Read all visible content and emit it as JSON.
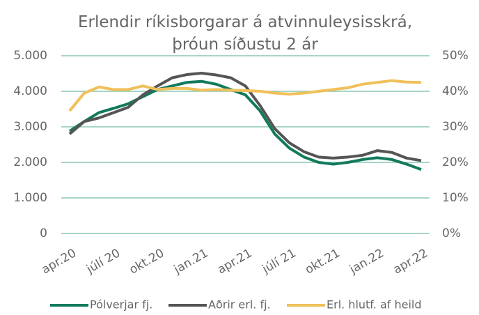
{
  "chart_data": {
    "type": "line",
    "title": "Erlendir ríkisborgarar á atvinnuleysisskrá, þróun síðustu 2 ár",
    "categories": [
      "apr.20",
      null,
      null,
      "júlí 20",
      null,
      null,
      "okt.20",
      null,
      null,
      "jan.21",
      null,
      null,
      "apr.21",
      null,
      null,
      "júlí 21",
      null,
      null,
      "okt.21",
      null,
      null,
      "jan.22",
      null,
      null,
      "apr.22"
    ],
    "series": [
      {
        "name": "Pólverjar fj.",
        "color": "#127a5c",
        "values": [
          2880,
          3150,
          3400,
          3520,
          3650,
          3850,
          4050,
          4150,
          4250,
          4280,
          4200,
          4050,
          3900,
          3450,
          2800,
          2400,
          2150,
          2000,
          1950,
          2000,
          2080,
          2130,
          2080,
          1950,
          1800
        ]
      },
      {
        "name": "Aðrir erl. fj.",
        "color": "#555555",
        "values": [
          2800,
          3150,
          3250,
          3400,
          3550,
          3900,
          4150,
          4380,
          4470,
          4510,
          4460,
          4380,
          4150,
          3600,
          2950,
          2550,
          2300,
          2150,
          2120,
          2150,
          2200,
          2330,
          2280,
          2120,
          2050
        ]
      },
      {
        "name": "Erl. hlutf. af heild",
        "color": "#f0c05a",
        "axis": "y2",
        "values": [
          34.5,
          39.5,
          41.2,
          40.5,
          40.5,
          41.5,
          40.5,
          40.8,
          40.8,
          40.3,
          40.5,
          40.3,
          40.2,
          40,
          39.5,
          39.2,
          39.5,
          40,
          40.5,
          41,
          42,
          42.5,
          43,
          42.6,
          42.5
        ]
      }
    ],
    "ylim": [
      0,
      5000
    ],
    "yticks": [
      0,
      {
        "value": 1000,
        "label": "1.000"
      },
      {
        "value": 2000,
        "label": "2.000"
      },
      {
        "value": 3000,
        "label": "3.000"
      },
      {
        "value": 4000,
        "label": "4.000"
      },
      {
        "value": 5000,
        "label": "5.000"
      }
    ],
    "y2lim": [
      0,
      50
    ],
    "y2ticks": [
      {
        "value": 0,
        "label": "0%"
      },
      {
        "value": 10,
        "label": "10%"
      },
      {
        "value": 20,
        "label": "20%"
      },
      {
        "value": 30,
        "label": "30%"
      },
      {
        "value": 40,
        "label": "40%"
      },
      {
        "value": 50,
        "label": "50%"
      }
    ],
    "grid": true,
    "legend": "bottom"
  }
}
